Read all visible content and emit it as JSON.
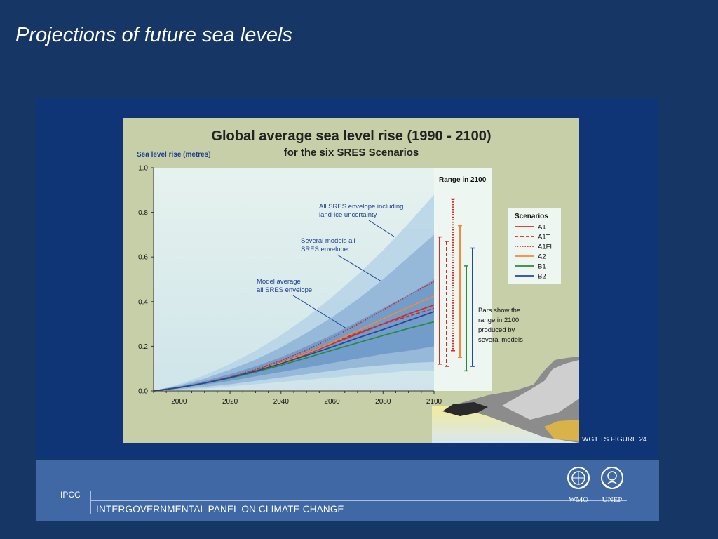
{
  "slide": {
    "title": "Projections of future sea levels",
    "figure_caption": "WG1 TS FIGURE 24"
  },
  "footer": {
    "ipcc": "IPCC",
    "organization": "INTERGOVERNMENTAL PANEL ON CLIMATE CHANGE",
    "logos": [
      {
        "label": "WMO",
        "icon": "wmo-emblem-icon"
      },
      {
        "label": "UNEP",
        "icon": "unep-emblem-icon"
      }
    ]
  },
  "colors": {
    "slide_background": "#163665",
    "panel": "#0f3577",
    "footer": "#3f68a4",
    "figure_background": "#c7cfa8",
    "envelope_outer": "#b6d3e6",
    "envelope_middle": "#8fb3d6",
    "envelope_inner": "#6c96c6"
  },
  "chart_data": {
    "type": "line",
    "title": "Global average sea level rise (1990 - 2100)",
    "subtitle": "for the six SRES Scenarios",
    "ylabel": "Sea level rise (metres)",
    "xlabel": "",
    "xlim": [
      1990,
      2100
    ],
    "ylim": [
      0,
      1.0
    ],
    "xticks": [
      "2000",
      "2020",
      "2040",
      "2060",
      "2080",
      "2100"
    ],
    "yticks": [
      "0.0",
      "0.2",
      "0.4",
      "0.6",
      "0.8",
      "1.0"
    ],
    "grid": false,
    "legend": {
      "title": "Scenarios",
      "position": "right"
    },
    "x": [
      1990,
      2000,
      2010,
      2020,
      2030,
      2040,
      2050,
      2060,
      2070,
      2080,
      2090,
      2100
    ],
    "series": [
      {
        "name": "A1",
        "color": "#d22a2a",
        "dash": "solid",
        "values": [
          0,
          0.015,
          0.035,
          0.06,
          0.09,
          0.125,
          0.165,
          0.21,
          0.255,
          0.3,
          0.345,
          0.385
        ]
      },
      {
        "name": "A1T",
        "color": "#d22a2a",
        "dash": "dashed",
        "values": [
          0,
          0.015,
          0.035,
          0.062,
          0.093,
          0.128,
          0.17,
          0.215,
          0.26,
          0.3,
          0.335,
          0.37
        ]
      },
      {
        "name": "A1FI",
        "color": "#d22a2a",
        "dash": "dotted",
        "values": [
          0,
          0.015,
          0.036,
          0.063,
          0.096,
          0.136,
          0.183,
          0.238,
          0.298,
          0.363,
          0.428,
          0.49
        ]
      },
      {
        "name": "A2",
        "color": "#f08a3c",
        "dash": "solid",
        "values": [
          0,
          0.015,
          0.035,
          0.06,
          0.09,
          0.126,
          0.168,
          0.216,
          0.27,
          0.323,
          0.375,
          0.425
        ]
      },
      {
        "name": "B1",
        "color": "#2a8a3c",
        "dash": "solid",
        "values": [
          0,
          0.015,
          0.035,
          0.058,
          0.085,
          0.115,
          0.148,
          0.182,
          0.215,
          0.248,
          0.28,
          0.31
        ]
      },
      {
        "name": "B2",
        "color": "#22489a",
        "dash": "solid",
        "values": [
          0,
          0.015,
          0.035,
          0.06,
          0.089,
          0.122,
          0.159,
          0.197,
          0.237,
          0.275,
          0.315,
          0.355
        ]
      }
    ],
    "envelopes": [
      {
        "name": "All SRES envelope including land-ice uncertainty",
        "upper": [
          0,
          0.03,
          0.07,
          0.12,
          0.18,
          0.25,
          0.33,
          0.42,
          0.52,
          0.63,
          0.75,
          0.88
        ],
        "lower": [
          0,
          0.005,
          0.01,
          0.02,
          0.03,
          0.04,
          0.05,
          0.06,
          0.07,
          0.08,
          0.09,
          0.09
        ]
      },
      {
        "name": "Several models all SRES envelope",
        "upper": [
          0,
          0.025,
          0.055,
          0.095,
          0.14,
          0.195,
          0.26,
          0.33,
          0.41,
          0.5,
          0.6,
          0.7
        ],
        "lower": [
          0,
          0.008,
          0.018,
          0.03,
          0.045,
          0.06,
          0.075,
          0.09,
          0.105,
          0.115,
          0.125,
          0.13
        ]
      },
      {
        "name": "Model average all SRES envelope",
        "upper": [
          0,
          0.02,
          0.045,
          0.075,
          0.11,
          0.15,
          0.2,
          0.25,
          0.31,
          0.37,
          0.43,
          0.5
        ],
        "lower": [
          0,
          0.012,
          0.028,
          0.045,
          0.065,
          0.085,
          0.105,
          0.125,
          0.145,
          0.165,
          0.18,
          0.2
        ]
      }
    ],
    "range_2100_title": "Range in 2100",
    "range_2100": [
      {
        "name": "A1",
        "color": "#d22a2a",
        "dash": "solid",
        "low": 0.12,
        "high": 0.69
      },
      {
        "name": "A1T",
        "color": "#d22a2a",
        "dash": "dashed",
        "low": 0.11,
        "high": 0.67
      },
      {
        "name": "A1FI",
        "color": "#d22a2a",
        "dash": "dotted",
        "low": 0.18,
        "high": 0.86
      },
      {
        "name": "A2",
        "color": "#f08a3c",
        "dash": "solid",
        "low": 0.15,
        "high": 0.74
      },
      {
        "name": "B1",
        "color": "#2a8a3c",
        "dash": "solid",
        "low": 0.09,
        "high": 0.56
      },
      {
        "name": "B2",
        "color": "#22489a",
        "dash": "solid",
        "low": 0.11,
        "high": 0.64
      }
    ],
    "annotations": [
      {
        "text": [
          "All SRES envelope including",
          "land-ice uncertainty"
        ]
      },
      {
        "text": [
          "Several models all",
          "SRES envelope"
        ]
      },
      {
        "text": [
          "Model average",
          "all SRES envelope"
        ]
      },
      {
        "text": [
          "Bars show  the",
          "range in 2100",
          "produced by",
          "several models"
        ]
      }
    ]
  }
}
